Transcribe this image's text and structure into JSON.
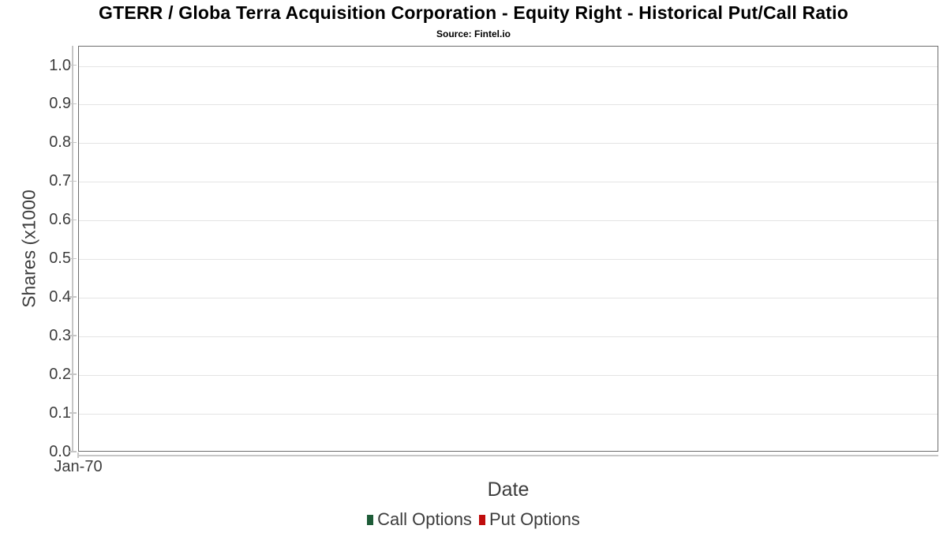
{
  "chart_data": {
    "type": "line",
    "title": "GTERR / Globa Terra Acquisition Corporation - Equity Right - Historical Put/Call Ratio",
    "subtitle": "Source: Fintel.io",
    "xlabel": "Date",
    "ylabel": "Shares (x1000",
    "ylim": [
      0,
      1.05
    ],
    "grid": "horizontal",
    "legend_position": "bottom-center",
    "y_ticks": [
      {
        "value": 0.0,
        "label": "0.0"
      },
      {
        "value": 0.1,
        "label": "0.1"
      },
      {
        "value": 0.2,
        "label": "0.2"
      },
      {
        "value": 0.3,
        "label": "0.3"
      },
      {
        "value": 0.4,
        "label": "0.4"
      },
      {
        "value": 0.5,
        "label": "0.5"
      },
      {
        "value": 0.6,
        "label": "0.6"
      },
      {
        "value": 0.7,
        "label": "0.7"
      },
      {
        "value": 0.8,
        "label": "0.8"
      },
      {
        "value": 0.9,
        "label": "0.9"
      },
      {
        "value": 1.0,
        "label": "1.0"
      }
    ],
    "x_ticks": [
      {
        "pos": 0.0,
        "label": "Jan-70"
      }
    ],
    "series": [
      {
        "name": "Call Options",
        "color": "#1e5c38",
        "points": []
      },
      {
        "name": "Put Options",
        "color": "#c00d0d",
        "points": []
      }
    ]
  },
  "colors": {
    "background": "#ffffff",
    "spine": "#6d6d6d",
    "grid": "#e4e4e4",
    "tick_rail": "#c6c6c6",
    "text": "#3d3d3d",
    "title_text": "#000000"
  }
}
